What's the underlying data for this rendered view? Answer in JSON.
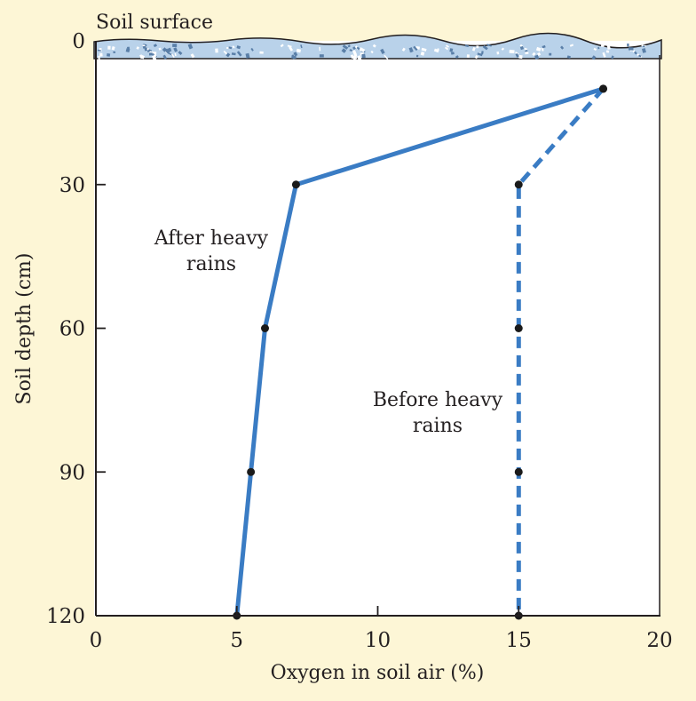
{
  "chart_data": {
    "type": "line",
    "title": "",
    "xlabel": "Oxygen in soil air (%)",
    "ylabel": "Soil depth (cm)",
    "xlim": [
      0,
      20
    ],
    "ylim": [
      0,
      120
    ],
    "y_inverted": true,
    "x_ticks": [
      0,
      5,
      10,
      15,
      20
    ],
    "y_ticks": [
      0,
      30,
      60,
      90,
      120
    ],
    "grid": false,
    "surface_label": "Soil surface",
    "series": [
      {
        "label": "After heavy rains",
        "label_lines": [
          "After heavy",
          "rains"
        ],
        "style": "solid",
        "color": "#3a7cc4",
        "points": [
          [
            18,
            10
          ],
          [
            7.1,
            30
          ],
          [
            6.0,
            60
          ],
          [
            5.5,
            90
          ],
          [
            5.0,
            120
          ]
        ]
      },
      {
        "label": "Before heavy rains",
        "label_lines": [
          "Before heavy",
          "rains"
        ],
        "style": "dashed",
        "color": "#3a7cc4",
        "points": [
          [
            18,
            10
          ],
          [
            15,
            30
          ],
          [
            15,
            60
          ],
          [
            15,
            90
          ],
          [
            15,
            120
          ]
        ]
      }
    ]
  },
  "colors": {
    "background": "#fdf6d6",
    "plot_area": "#ffffff",
    "soil_band": "#b9d2ea",
    "soil_speckle": "#5a7fa8",
    "axis": "#231f20",
    "marker": "#1a1a1a"
  }
}
